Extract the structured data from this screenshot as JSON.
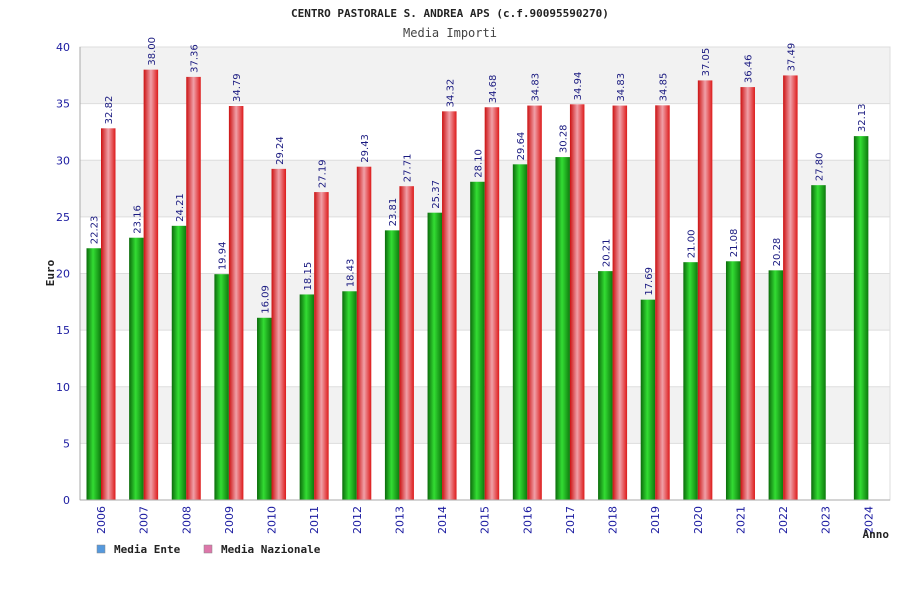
{
  "chart_data": {
    "type": "bar",
    "title": "CENTRO PASTORALE S. ANDREA APS (c.f.90095590270)",
    "subtitle": "Media Importi",
    "xlabel": "Anno",
    "ylabel": "Euro",
    "ylim": [
      0,
      40
    ],
    "yticks": [
      0,
      5,
      10,
      15,
      20,
      25,
      30,
      35,
      40
    ],
    "grid": true,
    "legend_position": "bottom-left",
    "categories": [
      "2006",
      "2007",
      "2008",
      "2009",
      "2010",
      "2011",
      "2012",
      "2013",
      "2014",
      "2015",
      "2016",
      "2017",
      "2018",
      "2019",
      "2020",
      "2021",
      "2022",
      "2023",
      "2024"
    ],
    "series": [
      {
        "name": "Media Ente",
        "color": "#22aa22",
        "legend_color": "#5599dd",
        "values": [
          22.23,
          23.16,
          24.21,
          19.94,
          16.09,
          18.15,
          18.43,
          23.81,
          25.37,
          28.1,
          29.64,
          30.28,
          20.21,
          17.69,
          21.0,
          21.08,
          20.28,
          27.8,
          32.13
        ],
        "labels": [
          "22.23",
          "23.16",
          "24.21",
          "19.94",
          "16.09",
          "18.15",
          "18.43",
          "23.81",
          "25.37",
          "28.10",
          "29.64",
          "30.28",
          "20.21",
          "17.69",
          "21.00",
          "21.08",
          "20.28",
          "27.80",
          "32.13"
        ]
      },
      {
        "name": "Media Nazionale",
        "color": "#ee3333",
        "legend_color": "#dd77aa",
        "values": [
          32.82,
          38.0,
          37.36,
          34.79,
          29.24,
          27.19,
          29.43,
          27.71,
          34.32,
          34.68,
          34.83,
          34.94,
          34.83,
          34.85,
          37.05,
          36.46,
          37.49,
          null,
          null
        ],
        "labels": [
          "32.82",
          "38.00",
          "37.36",
          "34.79",
          "29.24",
          "27.19",
          "29.43",
          "27.71",
          "34.32",
          "34.68",
          "34.83",
          "34.94",
          "34.83",
          "34.85",
          "37.05",
          "36.46",
          "37.49",
          null,
          null
        ]
      }
    ]
  }
}
